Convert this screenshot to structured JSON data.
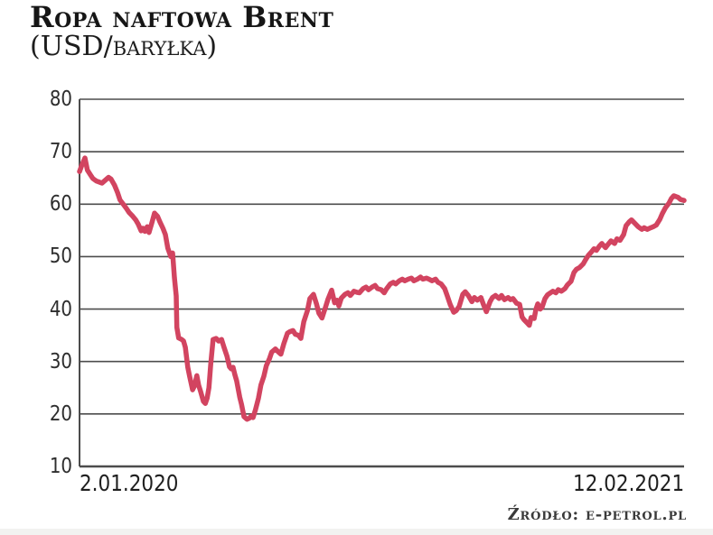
{
  "header": {
    "title": "Ropa naftowa Brent",
    "subtitle": "(USD/baryłka)"
  },
  "source": {
    "label": "Źródło: e-petrol.pl"
  },
  "chart_data": {
    "type": "line",
    "title": "Ropa naftowa Brent",
    "subtitle": "(USD/baryłka)",
    "ylabel": "USD/baryłka",
    "ylim": [
      10,
      80
    ],
    "yticks": [
      80,
      70,
      60,
      50,
      40,
      30,
      20,
      10
    ],
    "grid": "horizontal",
    "legend": "none",
    "x_axis_labels": {
      "start": "2.01.2020",
      "end": "12.02.2021"
    },
    "line_color": "#d24460",
    "grid_color": "#4c4c4c",
    "series": [
      {
        "name": "Brent (USD/baryłka)",
        "x_unit": "fraction of axis from 2.01.2020 to 12.02.2021",
        "points": [
          [
            0.0,
            66.2
          ],
          [
            0.004,
            67.5
          ],
          [
            0.009,
            68.8
          ],
          [
            0.013,
            66.5
          ],
          [
            0.018,
            65.6
          ],
          [
            0.022,
            64.9
          ],
          [
            0.028,
            64.4
          ],
          [
            0.033,
            64.2
          ],
          [
            0.037,
            64.0
          ],
          [
            0.043,
            64.6
          ],
          [
            0.048,
            65.1
          ],
          [
            0.052,
            64.8
          ],
          [
            0.058,
            63.6
          ],
          [
            0.063,
            62.2
          ],
          [
            0.067,
            60.8
          ],
          [
            0.073,
            59.9
          ],
          [
            0.078,
            59.1
          ],
          [
            0.082,
            58.4
          ],
          [
            0.088,
            57.7
          ],
          [
            0.093,
            57.0
          ],
          [
            0.097,
            56.2
          ],
          [
            0.102,
            54.9
          ],
          [
            0.105,
            55.4
          ],
          [
            0.108,
            54.8
          ],
          [
            0.112,
            55.7
          ],
          [
            0.115,
            54.6
          ],
          [
            0.12,
            56.6
          ],
          [
            0.124,
            58.3
          ],
          [
            0.129,
            57.7
          ],
          [
            0.133,
            56.6
          ],
          [
            0.138,
            55.4
          ],
          [
            0.142,
            54.2
          ],
          [
            0.146,
            51.6
          ],
          [
            0.151,
            50.0
          ],
          [
            0.154,
            50.7
          ],
          [
            0.157,
            46.0
          ],
          [
            0.16,
            42.5
          ],
          [
            0.161,
            36.5
          ],
          [
            0.164,
            34.5
          ],
          [
            0.169,
            34.2
          ],
          [
            0.172,
            33.9
          ],
          [
            0.175,
            32.7
          ],
          [
            0.179,
            28.9
          ],
          [
            0.182,
            27.2
          ],
          [
            0.187,
            24.6
          ],
          [
            0.19,
            25.3
          ],
          [
            0.194,
            27.3
          ],
          [
            0.197,
            25.5
          ],
          [
            0.2,
            24.4
          ],
          [
            0.205,
            22.4
          ],
          [
            0.208,
            22.0
          ],
          [
            0.211,
            23.0
          ],
          [
            0.214,
            25.0
          ],
          [
            0.217,
            29.5
          ],
          [
            0.221,
            34.2
          ],
          [
            0.226,
            34.4
          ],
          [
            0.23,
            33.9
          ],
          [
            0.235,
            34.2
          ],
          [
            0.239,
            32.7
          ],
          [
            0.244,
            31.0
          ],
          [
            0.248,
            29.0
          ],
          [
            0.251,
            28.6
          ],
          [
            0.254,
            28.9
          ],
          [
            0.257,
            27.5
          ],
          [
            0.26,
            26.3
          ],
          [
            0.265,
            23.2
          ],
          [
            0.268,
            21.8
          ],
          [
            0.272,
            19.5
          ],
          [
            0.277,
            19.0
          ],
          [
            0.281,
            19.2
          ],
          [
            0.284,
            19.6
          ],
          [
            0.287,
            19.3
          ],
          [
            0.291,
            20.8
          ],
          [
            0.296,
            23.0
          ],
          [
            0.3,
            25.5
          ],
          [
            0.305,
            27.2
          ],
          [
            0.309,
            29.2
          ],
          [
            0.314,
            30.5
          ],
          [
            0.318,
            31.8
          ],
          [
            0.324,
            32.4
          ],
          [
            0.329,
            31.8
          ],
          [
            0.333,
            31.4
          ],
          [
            0.338,
            33.4
          ],
          [
            0.344,
            35.4
          ],
          [
            0.348,
            35.7
          ],
          [
            0.353,
            35.9
          ],
          [
            0.357,
            35.2
          ],
          [
            0.362,
            35.0
          ],
          [
            0.366,
            34.4
          ],
          [
            0.371,
            37.6
          ],
          [
            0.377,
            39.7
          ],
          [
            0.381,
            42.0
          ],
          [
            0.387,
            42.8
          ],
          [
            0.392,
            41.0
          ],
          [
            0.396,
            39.2
          ],
          [
            0.401,
            38.3
          ],
          [
            0.407,
            40.4
          ],
          [
            0.411,
            41.9
          ],
          [
            0.417,
            43.6
          ],
          [
            0.422,
            41.2
          ],
          [
            0.426,
            41.7
          ],
          [
            0.429,
            40.6
          ],
          [
            0.433,
            42.1
          ],
          [
            0.439,
            42.8
          ],
          [
            0.444,
            43.1
          ],
          [
            0.448,
            42.6
          ],
          [
            0.454,
            43.4
          ],
          [
            0.459,
            43.2
          ],
          [
            0.463,
            43.1
          ],
          [
            0.469,
            43.9
          ],
          [
            0.474,
            44.2
          ],
          [
            0.478,
            43.7
          ],
          [
            0.484,
            44.2
          ],
          [
            0.489,
            44.5
          ],
          [
            0.493,
            43.9
          ],
          [
            0.499,
            43.7
          ],
          [
            0.504,
            43.1
          ],
          [
            0.508,
            43.9
          ],
          [
            0.514,
            44.8
          ],
          [
            0.519,
            45.1
          ],
          [
            0.523,
            44.8
          ],
          [
            0.529,
            45.4
          ],
          [
            0.534,
            45.7
          ],
          [
            0.538,
            45.4
          ],
          [
            0.544,
            45.7
          ],
          [
            0.549,
            45.9
          ],
          [
            0.553,
            45.4
          ],
          [
            0.559,
            45.7
          ],
          [
            0.564,
            46.1
          ],
          [
            0.568,
            45.7
          ],
          [
            0.574,
            45.9
          ],
          [
            0.578,
            45.7
          ],
          [
            0.583,
            45.4
          ],
          [
            0.589,
            45.7
          ],
          [
            0.593,
            45.1
          ],
          [
            0.598,
            44.8
          ],
          [
            0.604,
            43.9
          ],
          [
            0.608,
            42.6
          ],
          [
            0.613,
            40.9
          ],
          [
            0.619,
            39.4
          ],
          [
            0.623,
            39.7
          ],
          [
            0.628,
            40.5
          ],
          [
            0.634,
            42.8
          ],
          [
            0.638,
            43.3
          ],
          [
            0.643,
            42.6
          ],
          [
            0.649,
            41.4
          ],
          [
            0.653,
            42.2
          ],
          [
            0.658,
            41.7
          ],
          [
            0.664,
            42.2
          ],
          [
            0.668,
            40.9
          ],
          [
            0.673,
            39.5
          ],
          [
            0.679,
            41.4
          ],
          [
            0.683,
            42.2
          ],
          [
            0.688,
            42.6
          ],
          [
            0.694,
            42.0
          ],
          [
            0.698,
            42.6
          ],
          [
            0.703,
            41.8
          ],
          [
            0.709,
            42.2
          ],
          [
            0.713,
            41.8
          ],
          [
            0.717,
            42.0
          ],
          [
            0.723,
            41.1
          ],
          [
            0.728,
            40.9
          ],
          [
            0.732,
            38.5
          ],
          [
            0.735,
            38.0
          ],
          [
            0.74,
            37.4
          ],
          [
            0.744,
            36.9
          ],
          [
            0.747,
            38.4
          ],
          [
            0.752,
            38.2
          ],
          [
            0.755,
            40.0
          ],
          [
            0.758,
            41.0
          ],
          [
            0.762,
            40.0
          ],
          [
            0.765,
            40.3
          ],
          [
            0.77,
            42.0
          ],
          [
            0.774,
            42.7
          ],
          [
            0.779,
            43.1
          ],
          [
            0.783,
            43.4
          ],
          [
            0.788,
            43.1
          ],
          [
            0.792,
            43.7
          ],
          [
            0.797,
            43.4
          ],
          [
            0.803,
            43.9
          ],
          [
            0.807,
            44.6
          ],
          [
            0.813,
            45.3
          ],
          [
            0.818,
            47.0
          ],
          [
            0.822,
            47.6
          ],
          [
            0.827,
            47.9
          ],
          [
            0.833,
            48.6
          ],
          [
            0.837,
            49.4
          ],
          [
            0.842,
            50.3
          ],
          [
            0.846,
            50.8
          ],
          [
            0.851,
            51.5
          ],
          [
            0.855,
            51.2
          ],
          [
            0.86,
            52.0
          ],
          [
            0.864,
            52.5
          ],
          [
            0.87,
            51.7
          ],
          [
            0.874,
            52.3
          ],
          [
            0.879,
            53.0
          ],
          [
            0.885,
            52.5
          ],
          [
            0.889,
            53.4
          ],
          [
            0.894,
            53.1
          ],
          [
            0.9,
            54.2
          ],
          [
            0.904,
            55.9
          ],
          [
            0.909,
            56.6
          ],
          [
            0.913,
            57.0
          ],
          [
            0.919,
            56.3
          ],
          [
            0.924,
            55.7
          ],
          [
            0.93,
            55.2
          ],
          [
            0.934,
            55.5
          ],
          [
            0.939,
            55.2
          ],
          [
            0.945,
            55.5
          ],
          [
            0.949,
            55.7
          ],
          [
            0.954,
            56.0
          ],
          [
            0.96,
            57.1
          ],
          [
            0.964,
            58.2
          ],
          [
            0.969,
            59.3
          ],
          [
            0.975,
            60.2
          ],
          [
            0.979,
            61.1
          ],
          [
            0.983,
            61.6
          ],
          [
            0.99,
            61.3
          ],
          [
            0.994,
            60.9
          ],
          [
            1.0,
            60.7
          ]
        ]
      }
    ]
  }
}
